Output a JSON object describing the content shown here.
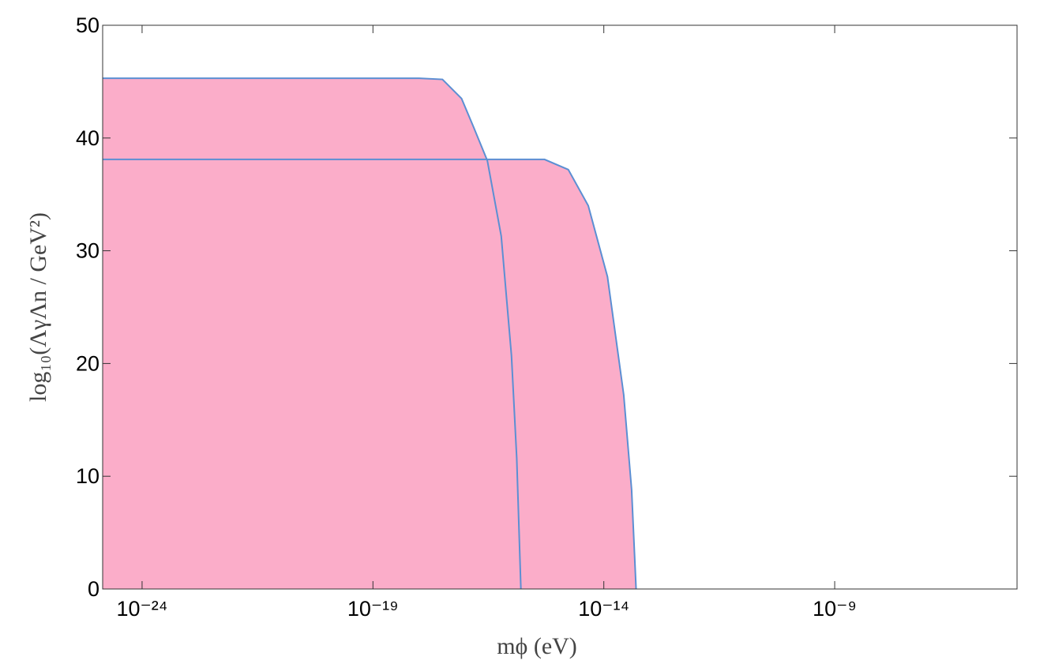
{
  "chart_data": {
    "type": "area",
    "xlabel": "mϕ (eV)",
    "ylabel": "log₁₀(ΛγΛn / GeV²)",
    "xscale": "log",
    "xlim": [
      1.4e-25,
      8.9e-06
    ],
    "ylim": [
      0,
      50
    ],
    "xticks": [
      {
        "value": 1e-24,
        "label": "10⁻²⁴"
      },
      {
        "value": 1e-19,
        "label": "10⁻¹⁹"
      },
      {
        "value": 1e-14,
        "label": "10⁻¹⁴"
      },
      {
        "value": 1e-09,
        "label": "10⁻⁹"
      }
    ],
    "yticks": [
      0,
      10,
      20,
      30,
      40,
      50
    ],
    "fill_color": "#fbadc9",
    "series": [
      {
        "color": "#5b8fd3",
        "x": [
          1.4e-25,
          1e-18,
          3.2e-18,
          8.3e-18,
          1.5e-17,
          3e-17,
          6e-17,
          1e-16,
          1.3e-16,
          1.6e-16
        ],
        "values": [
          45.3,
          45.3,
          45.2,
          43.5,
          41,
          38,
          31.3,
          20.7,
          11.6,
          0
        ]
      },
      {
        "color": "#5b8fd3",
        "x": [
          1.4e-25,
          5.2e-16,
          1.7e-15,
          4.6e-15,
          1.2e-14,
          2.7e-14,
          4e-14,
          5e-14
        ],
        "values": [
          38.1,
          38.1,
          37.2,
          34.0,
          27.7,
          17.2,
          8.8,
          0
        ]
      }
    ]
  }
}
